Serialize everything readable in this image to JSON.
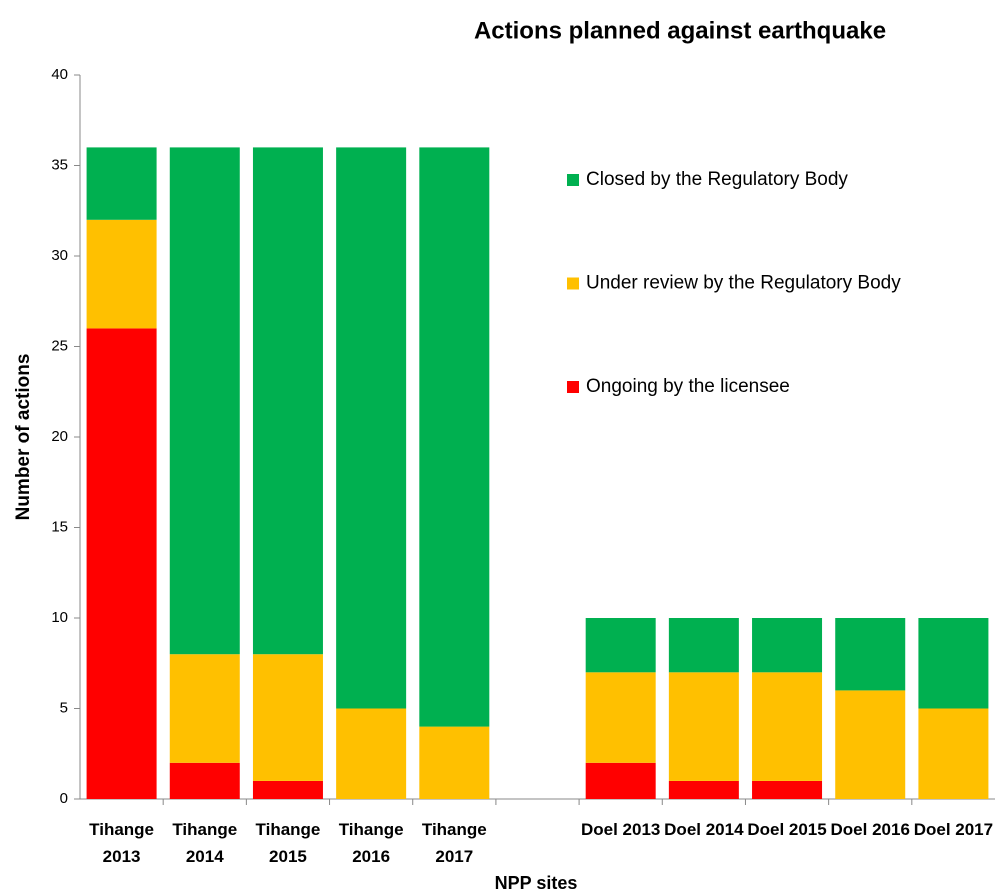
{
  "chart_data": {
    "type": "stacked_bar",
    "title": "Actions planned against earthquake",
    "x_label": "NPP sites",
    "y_label": "Number of actions",
    "categories": [
      "Tihange 2013",
      "Tihange 2014",
      "Tihange 2015",
      "Tihange 2016",
      "Tihange 2017",
      null,
      "Doel 2013",
      "Doel 2014",
      "Doel 2015",
      "Doel 2016",
      "Doel 2017"
    ],
    "series": [
      {
        "name": "Ongoing by the licensee",
        "color": "#ff0000",
        "values": [
          26,
          2,
          1,
          0,
          0,
          null,
          2,
          1,
          1,
          0,
          0
        ]
      },
      {
        "name": "Under review by the Regulatory Body",
        "color": "#ffc000",
        "values": [
          6,
          6,
          7,
          5,
          4,
          null,
          5,
          6,
          6,
          6,
          5
        ]
      },
      {
        "name": "Closed by the Regulatory Body",
        "color": "#00b050",
        "values": [
          4,
          28,
          28,
          31,
          32,
          null,
          3,
          3,
          3,
          4,
          5
        ]
      }
    ],
    "ylim": [
      0,
      40
    ],
    "yticks": [
      0,
      5,
      10,
      15,
      20,
      25,
      30,
      35,
      40
    ],
    "grid": false,
    "legend": "right"
  }
}
